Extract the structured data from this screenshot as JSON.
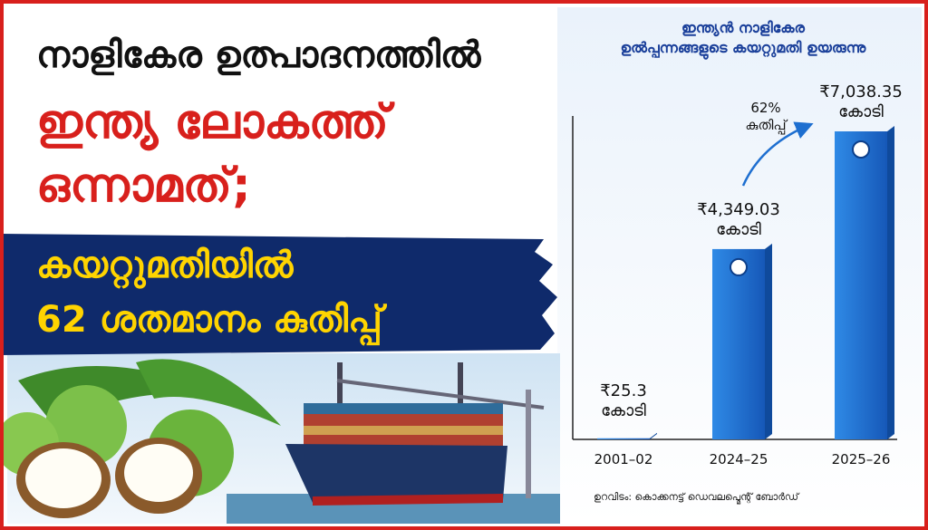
{
  "headline": {
    "line1": "നാളികേര ഉത്പാദനത്തിൽ",
    "line2": "ഇന്ത്യ ലോകത്ത്",
    "line3": "ഒന്നാമത്;",
    "banner1": "കയറ്റുമതിയിൽ",
    "banner2": "62 ശതമാനം കുതിപ്പ്"
  },
  "chart_data": {
    "type": "bar",
    "title": "ഇന്ത്യൻ നാളികേര\nഉൽപ്പന്നങ്ങളുടെ കയറ്റുമതി ഉയരുന്നു",
    "categories": [
      "2001–02",
      "2024–25",
      "2025–26"
    ],
    "values": [
      25.3,
      4349.03,
      7038.35
    ],
    "value_labels": [
      "₹25.3\nകോടി",
      "₹4,349.03\nകോടി",
      "₹7,038.35\nകോടി"
    ],
    "color": "#1e6fd0",
    "annotation": "62%\nകുതിപ്പ്",
    "source": "ഉറവിടം: കൊക്കനട്ട് ഡെവലപ്മെന്റ് ബോർഡ്"
  }
}
